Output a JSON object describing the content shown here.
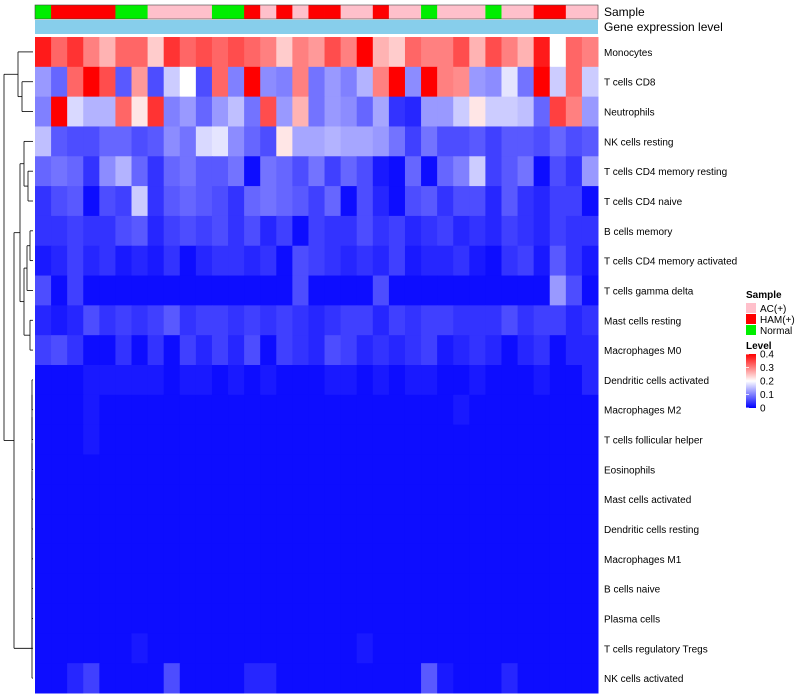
{
  "chart_data": {
    "type": "heatmap",
    "title": "",
    "annotation_labels": {
      "sample": "Sample",
      "expression": "Gene expression level"
    },
    "rows": [
      "Monocytes",
      "T cells CD8",
      "Neutrophils",
      "NK cells resting",
      "T cells CD4 memory resting",
      "T cells CD4 naive",
      "B cells memory",
      "T cells CD4 memory activated",
      "T cells gamma delta",
      "Mast cells resting",
      "Macrophages M0",
      "Dendritic cells activated",
      "Macrophages M2",
      "T cells follicular helper",
      "Eosinophils",
      "Mast cells activated",
      "Dendritic cells resting",
      "Macrophages M1",
      "B cells naive",
      "Plasma cells",
      "T cells regulatory  Tregs",
      "NK cells activated"
    ],
    "sample_groups": [
      "Normal",
      "HAM(+)",
      "HAM(+)",
      "HAM(+)",
      "HAM(+)",
      "Normal",
      "Normal",
      "AC(+)",
      "AC(+)",
      "AC(+)",
      "AC(+)",
      "Normal",
      "Normal",
      "HAM(+)",
      "AC(+)",
      "HAM(+)",
      "AC(+)",
      "HAM(+)",
      "HAM(+)",
      "AC(+)",
      "AC(+)",
      "HAM(+)",
      "AC(+)",
      "AC(+)",
      "Normal",
      "AC(+)",
      "AC(+)",
      "AC(+)",
      "Normal",
      "AC(+)",
      "AC(+)",
      "HAM(+)",
      "HAM(+)",
      "AC(+)",
      "AC(+)"
    ],
    "values": [
      [
        0.38,
        0.32,
        0.36,
        0.3,
        0.26,
        0.32,
        0.32,
        0.24,
        0.36,
        0.32,
        0.34,
        0.32,
        0.34,
        0.32,
        0.3,
        0.24,
        0.3,
        0.28,
        0.34,
        0.3,
        0.4,
        0.26,
        0.24,
        0.32,
        0.3,
        0.3,
        0.34,
        0.26,
        0.34,
        0.3,
        0.26,
        0.38,
        0.2,
        0.32,
        0.3
      ],
      [
        0.12,
        0.08,
        0.32,
        0.4,
        0.34,
        0.07,
        0.28,
        0.06,
        0.16,
        0.2,
        0.06,
        0.32,
        0.1,
        0.4,
        0.11,
        0.1,
        0.3,
        0.09,
        0.12,
        0.1,
        0.14,
        0.3,
        0.4,
        0.11,
        0.4,
        0.3,
        0.29,
        0.12,
        0.11,
        0.18,
        0.09,
        0.4,
        0.16,
        0.32,
        0.16
      ],
      [
        0.1,
        0.4,
        0.17,
        0.14,
        0.14,
        0.32,
        0.22,
        0.36,
        0.1,
        0.12,
        0.08,
        0.12,
        0.15,
        0.09,
        0.34,
        0.12,
        0.26,
        0.09,
        0.12,
        0.11,
        0.08,
        0.13,
        0.04,
        0.03,
        0.12,
        0.12,
        0.16,
        0.22,
        0.16,
        0.16,
        0.15,
        0.08,
        0.35,
        0.3,
        0.12
      ],
      [
        0.15,
        0.07,
        0.06,
        0.06,
        0.08,
        0.08,
        0.06,
        0.07,
        0.11,
        0.09,
        0.17,
        0.18,
        0.11,
        0.08,
        0.06,
        0.22,
        0.13,
        0.13,
        0.14,
        0.13,
        0.13,
        0.12,
        0.09,
        0.05,
        0.09,
        0.06,
        0.06,
        0.07,
        0.05,
        0.07,
        0.07,
        0.06,
        0.08,
        0.06,
        0.07
      ],
      [
        0.08,
        0.09,
        0.08,
        0.04,
        0.11,
        0.14,
        0.08,
        0.04,
        0.08,
        0.09,
        0.07,
        0.07,
        0.09,
        0.01,
        0.09,
        0.08,
        0.06,
        0.09,
        0.05,
        0.08,
        0.06,
        0.02,
        0.01,
        0.08,
        0.01,
        0.08,
        0.1,
        0.16,
        0.05,
        0.07,
        0.09,
        0.01,
        0.06,
        0.04,
        0.12
      ],
      [
        0.04,
        0.06,
        0.07,
        0.01,
        0.06,
        0.05,
        0.16,
        0.04,
        0.07,
        0.08,
        0.07,
        0.06,
        0.04,
        0.08,
        0.09,
        0.08,
        0.07,
        0.05,
        0.08,
        0.01,
        0.06,
        0.03,
        0.01,
        0.06,
        0.07,
        0.04,
        0.06,
        0.06,
        0.03,
        0.07,
        0.04,
        0.03,
        0.05,
        0.05,
        0.01
      ],
      [
        0.04,
        0.04,
        0.05,
        0.04,
        0.04,
        0.06,
        0.07,
        0.03,
        0.05,
        0.06,
        0.05,
        0.06,
        0.04,
        0.06,
        0.03,
        0.05,
        0.01,
        0.05,
        0.04,
        0.04,
        0.06,
        0.04,
        0.05,
        0.03,
        0.04,
        0.05,
        0.03,
        0.04,
        0.03,
        0.05,
        0.04,
        0.03,
        0.05,
        0.04,
        0.04
      ],
      [
        0.02,
        0.03,
        0.05,
        0.03,
        0.04,
        0.02,
        0.03,
        0.02,
        0.04,
        0.01,
        0.03,
        0.04,
        0.04,
        0.03,
        0.04,
        0.01,
        0.06,
        0.05,
        0.04,
        0.03,
        0.04,
        0.03,
        0.05,
        0.02,
        0.03,
        0.03,
        0.04,
        0.02,
        0.01,
        0.04,
        0.05,
        0.02,
        0.07,
        0.04,
        0.02
      ],
      [
        0.06,
        0.01,
        0.05,
        0.01,
        0.01,
        0.01,
        0.01,
        0.01,
        0.01,
        0.01,
        0.01,
        0.01,
        0.01,
        0.01,
        0.01,
        0.01,
        0.06,
        0.01,
        0.01,
        0.01,
        0.01,
        0.06,
        0.01,
        0.01,
        0.01,
        0.01,
        0.01,
        0.01,
        0.01,
        0.01,
        0.01,
        0.01,
        0.12,
        0.06,
        0.01
      ],
      [
        0.03,
        0.02,
        0.03,
        0.06,
        0.04,
        0.05,
        0.04,
        0.05,
        0.07,
        0.04,
        0.05,
        0.05,
        0.04,
        0.05,
        0.04,
        0.05,
        0.04,
        0.03,
        0.04,
        0.05,
        0.05,
        0.03,
        0.05,
        0.04,
        0.05,
        0.05,
        0.04,
        0.04,
        0.04,
        0.06,
        0.04,
        0.05,
        0.05,
        0.03,
        0.04
      ],
      [
        0.05,
        0.06,
        0.04,
        0.01,
        0.01,
        0.04,
        0.01,
        0.04,
        0.01,
        0.05,
        0.03,
        0.05,
        0.03,
        0.06,
        0.01,
        0.05,
        0.04,
        0.03,
        0.06,
        0.05,
        0.03,
        0.04,
        0.03,
        0.04,
        0.05,
        0.02,
        0.03,
        0.04,
        0.03,
        0.01,
        0.03,
        0.04,
        0.01,
        0.03,
        0.03
      ],
      [
        0.01,
        0.01,
        0.01,
        0.02,
        0.02,
        0.02,
        0.02,
        0.02,
        0.01,
        0.02,
        0.02,
        0.01,
        0.02,
        0.01,
        0.02,
        0.01,
        0.01,
        0.01,
        0.02,
        0.02,
        0.01,
        0.02,
        0.01,
        0.02,
        0.02,
        0.01,
        0.01,
        0.02,
        0.01,
        0.01,
        0.01,
        0.02,
        0.01,
        0.01,
        0.03
      ],
      [
        0.01,
        0.01,
        0.01,
        0.02,
        0.01,
        0.01,
        0.01,
        0.01,
        0.01,
        0.01,
        0.01,
        0.01,
        0.01,
        0.01,
        0.01,
        0.01,
        0.01,
        0.01,
        0.01,
        0.01,
        0.01,
        0.01,
        0.01,
        0.01,
        0.01,
        0.01,
        0.02,
        0.01,
        0.01,
        0.01,
        0.01,
        0.01,
        0.01,
        0.01,
        0.01
      ],
      [
        0.01,
        0.01,
        0.01,
        0.02,
        0.01,
        0.01,
        0.01,
        0.01,
        0.01,
        0.01,
        0.01,
        0.01,
        0.01,
        0.01,
        0.01,
        0.01,
        0.01,
        0.01,
        0.01,
        0.01,
        0.01,
        0.01,
        0.01,
        0.01,
        0.01,
        0.01,
        0.01,
        0.01,
        0.01,
        0.01,
        0.01,
        0.01,
        0.01,
        0.01,
        0.01
      ],
      [
        0.01,
        0.01,
        0.01,
        0.01,
        0.01,
        0.01,
        0.01,
        0.01,
        0.01,
        0.01,
        0.01,
        0.01,
        0.01,
        0.01,
        0.01,
        0.01,
        0.01,
        0.01,
        0.01,
        0.01,
        0.01,
        0.01,
        0.01,
        0.01,
        0.01,
        0.01,
        0.01,
        0.01,
        0.01,
        0.01,
        0.01,
        0.01,
        0.01,
        0.01,
        0.01
      ],
      [
        0.01,
        0.01,
        0.01,
        0.01,
        0.01,
        0.01,
        0.01,
        0.01,
        0.01,
        0.01,
        0.01,
        0.01,
        0.01,
        0.01,
        0.01,
        0.01,
        0.01,
        0.01,
        0.01,
        0.01,
        0.01,
        0.01,
        0.01,
        0.01,
        0.01,
        0.01,
        0.01,
        0.01,
        0.01,
        0.01,
        0.01,
        0.01,
        0.01,
        0.01,
        0.01
      ],
      [
        0.01,
        0.01,
        0.01,
        0.01,
        0.01,
        0.01,
        0.01,
        0.01,
        0.01,
        0.01,
        0.01,
        0.01,
        0.01,
        0.01,
        0.01,
        0.01,
        0.01,
        0.01,
        0.01,
        0.01,
        0.01,
        0.01,
        0.01,
        0.01,
        0.01,
        0.01,
        0.01,
        0.01,
        0.01,
        0.01,
        0.01,
        0.01,
        0.01,
        0.01,
        0.01
      ],
      [
        0.01,
        0.01,
        0.01,
        0.01,
        0.01,
        0.01,
        0.01,
        0.01,
        0.01,
        0.01,
        0.01,
        0.01,
        0.01,
        0.01,
        0.01,
        0.01,
        0.01,
        0.01,
        0.01,
        0.01,
        0.01,
        0.01,
        0.01,
        0.01,
        0.01,
        0.01,
        0.01,
        0.01,
        0.01,
        0.01,
        0.01,
        0.01,
        0.01,
        0.01,
        0.01
      ],
      [
        0.01,
        0.01,
        0.01,
        0.01,
        0.01,
        0.01,
        0.01,
        0.01,
        0.01,
        0.01,
        0.01,
        0.01,
        0.01,
        0.01,
        0.01,
        0.01,
        0.01,
        0.01,
        0.01,
        0.01,
        0.01,
        0.01,
        0.01,
        0.01,
        0.01,
        0.01,
        0.01,
        0.01,
        0.01,
        0.01,
        0.01,
        0.01,
        0.01,
        0.01,
        0.01
      ],
      [
        0.01,
        0.01,
        0.01,
        0.01,
        0.01,
        0.01,
        0.01,
        0.01,
        0.01,
        0.01,
        0.01,
        0.01,
        0.01,
        0.01,
        0.01,
        0.01,
        0.01,
        0.01,
        0.01,
        0.01,
        0.01,
        0.01,
        0.01,
        0.01,
        0.01,
        0.01,
        0.01,
        0.01,
        0.01,
        0.01,
        0.01,
        0.01,
        0.01,
        0.01,
        0.01
      ],
      [
        0.01,
        0.01,
        0.01,
        0.01,
        0.01,
        0.01,
        0.02,
        0.01,
        0.01,
        0.01,
        0.01,
        0.01,
        0.01,
        0.01,
        0.01,
        0.01,
        0.01,
        0.01,
        0.01,
        0.01,
        0.02,
        0.01,
        0.01,
        0.01,
        0.01,
        0.01,
        0.01,
        0.01,
        0.01,
        0.01,
        0.01,
        0.01,
        0.01,
        0.01,
        0.01
      ],
      [
        0.01,
        0.01,
        0.03,
        0.05,
        0.01,
        0.01,
        0.01,
        0.01,
        0.06,
        0.01,
        0.01,
        0.01,
        0.01,
        0.03,
        0.03,
        0.01,
        0.01,
        0.01,
        0.01,
        0.01,
        0.01,
        0.01,
        0.01,
        0.01,
        0.07,
        0.02,
        0.01,
        0.01,
        0.01,
        0.03,
        0.01,
        0.01,
        0.01,
        0.01,
        0.01
      ]
    ],
    "value_range": [
      0,
      0.4
    ],
    "legend": {
      "sample_title": "Sample",
      "sample_items": [
        {
          "label": "AC(+)",
          "color": "#FFC0CB"
        },
        {
          "label": "HAM(+)",
          "color": "#FF0000"
        },
        {
          "label": "Normal",
          "color": "#00EE00"
        }
      ],
      "level_title": "Level",
      "level_ticks": [
        "0.4",
        "0.3",
        "0.2",
        "0.1",
        "0"
      ],
      "position": "right"
    }
  },
  "colors": {
    "low": "#0000FF",
    "mid": "#FFFFFF",
    "high": "#FF0000",
    "expression_bar": "#87CEEB",
    "AC(+)": "#FFC0CB",
    "HAM(+)": "#FF0000",
    "Normal": "#00EE00"
  }
}
